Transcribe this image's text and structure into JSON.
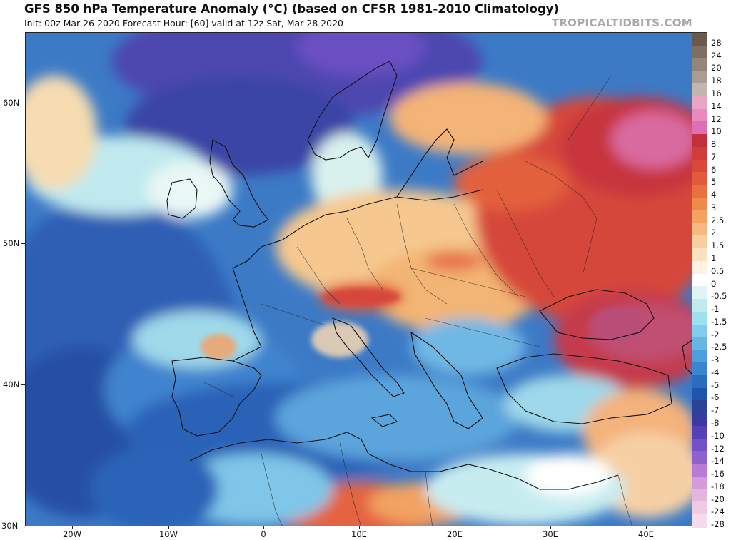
{
  "header": {
    "title": "GFS 850 hPa Temperature Anomaly (°C) (based on CFSR 1981-2010 Climatology)",
    "subtitle": "Init: 00z Mar 26 2020   Forecast Hour: [60]   valid at 12z Sat, Mar 28 2020",
    "brand": "TROPICALTIDBITS.COM"
  },
  "map": {
    "region": "Europe / North Africa",
    "lat_labels": [
      "60N",
      "50N",
      "40N",
      "30N"
    ],
    "lon_labels": [
      "20W",
      "10W",
      "0",
      "10E",
      "20E",
      "30E",
      "40E"
    ]
  },
  "colorbar": {
    "levels": [
      "28",
      "24",
      "20",
      "18",
      "16",
      "14",
      "12",
      "10",
      "8",
      "7",
      "6",
      "5",
      "4",
      "3",
      "2.5",
      "2",
      "1.5",
      "1",
      "0.5",
      "0",
      "-0.5",
      "-1",
      "-1.5",
      "-2",
      "-2.5",
      "-3",
      "-4",
      "-5",
      "-6",
      "-7",
      "-8",
      "-10",
      "-12",
      "-14",
      "-16",
      "-18",
      "-20",
      "-24",
      "-28"
    ],
    "colors": [
      "#6b5a4c",
      "#7f6e62",
      "#958579",
      "#a89c93",
      "#c1b6b0",
      "#e8a6c4",
      "#e989c0",
      "#df6fb4",
      "#c1303b",
      "#cf3c3a",
      "#d9483a",
      "#e2593b",
      "#e9703f",
      "#ef8a4b",
      "#f3a262",
      "#f6b97f",
      "#f8cf9e",
      "#fae2bf",
      "#fcf2df",
      "#ffffff",
      "#dff5f4",
      "#bfebef",
      "#9fe0ee",
      "#81cdeb",
      "#66b7e4",
      "#4e9fdb",
      "#3b86d0",
      "#2a6cbf",
      "#2054aa",
      "#284397",
      "#3a3aa3",
      "#5541b6",
      "#7352c7",
      "#9060cf",
      "#b77dd6",
      "#d39bd9",
      "#e4b5dd",
      "#edcbe3",
      "#f4dced"
    ]
  }
}
